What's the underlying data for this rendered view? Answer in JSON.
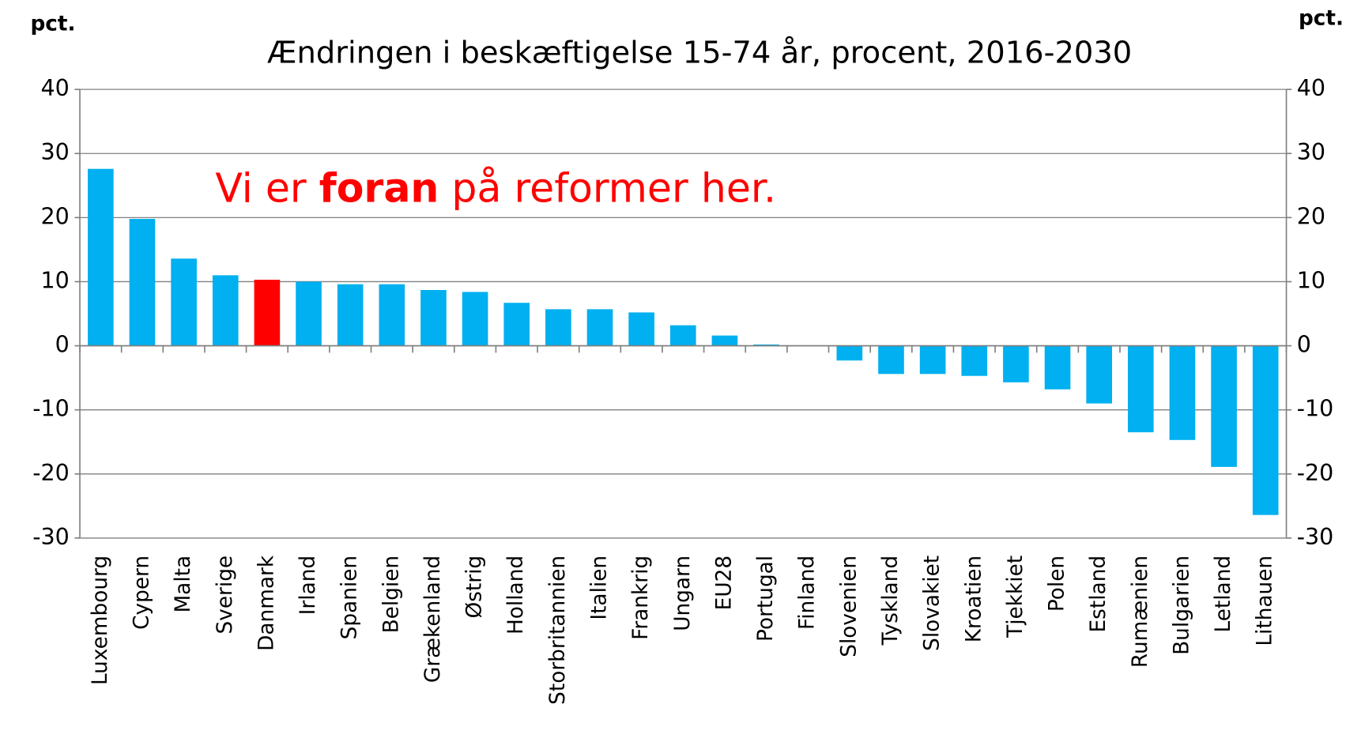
{
  "chart_data": {
    "type": "bar",
    "title": "Ændringen i beskæftigelse 15-74 år, procent, 2016-2030",
    "y_label": "pct.",
    "y2_label": "pct.",
    "annotation": [
      "Vi er ",
      "foran",
      " på reformer her."
    ],
    "annotation_color": "#ff0000",
    "categories": [
      "Luxembourg",
      "Cypern",
      "Malta",
      "Sverige",
      "Danmark",
      "Irland",
      "Spanien",
      "Belgien",
      "Grækenland",
      "Østrig",
      "Holland",
      "Storbritannien",
      "Italien",
      "Frankrig",
      "Ungarn",
      "EU28",
      "Portugal",
      "Finland",
      "Slovenien",
      "Tyskland",
      "Slovakiet",
      "Kroatien",
      "Tjekkiet",
      "Polen",
      "Estland",
      "Rumænien",
      "Bulgarien",
      "Letland",
      "Lithauen"
    ],
    "values": [
      27.6,
      19.8,
      13.6,
      11.0,
      10.3,
      10.0,
      9.6,
      9.6,
      8.7,
      8.4,
      6.7,
      5.7,
      5.7,
      5.2,
      3.2,
      1.6,
      0.2,
      0.0,
      -2.3,
      -4.4,
      -4.4,
      -4.7,
      -5.7,
      -6.8,
      -9.0,
      -13.5,
      -14.7,
      -18.9,
      -26.4
    ],
    "colors": [
      "#00b0f0",
      "#00b0f0",
      "#00b0f0",
      "#00b0f0",
      "#ff0000",
      "#00b0f0",
      "#00b0f0",
      "#00b0f0",
      "#00b0f0",
      "#00b0f0",
      "#00b0f0",
      "#00b0f0",
      "#00b0f0",
      "#00b0f0",
      "#00b0f0",
      "#00b0f0",
      "#00b0f0",
      "#00b0f0",
      "#00b0f0",
      "#00b0f0",
      "#00b0f0",
      "#00b0f0",
      "#00b0f0",
      "#00b0f0",
      "#00b0f0",
      "#00b0f0",
      "#00b0f0",
      "#00b0f0",
      "#00b0f0"
    ],
    "ylim": [
      -30,
      40
    ],
    "yticks": [
      -30,
      -20,
      -10,
      0,
      10,
      20,
      30,
      40
    ],
    "y2lim": [
      -30,
      40
    ],
    "y2ticks": [
      -30,
      -20,
      -10,
      0,
      10,
      20,
      30,
      40
    ],
    "grid": true
  }
}
